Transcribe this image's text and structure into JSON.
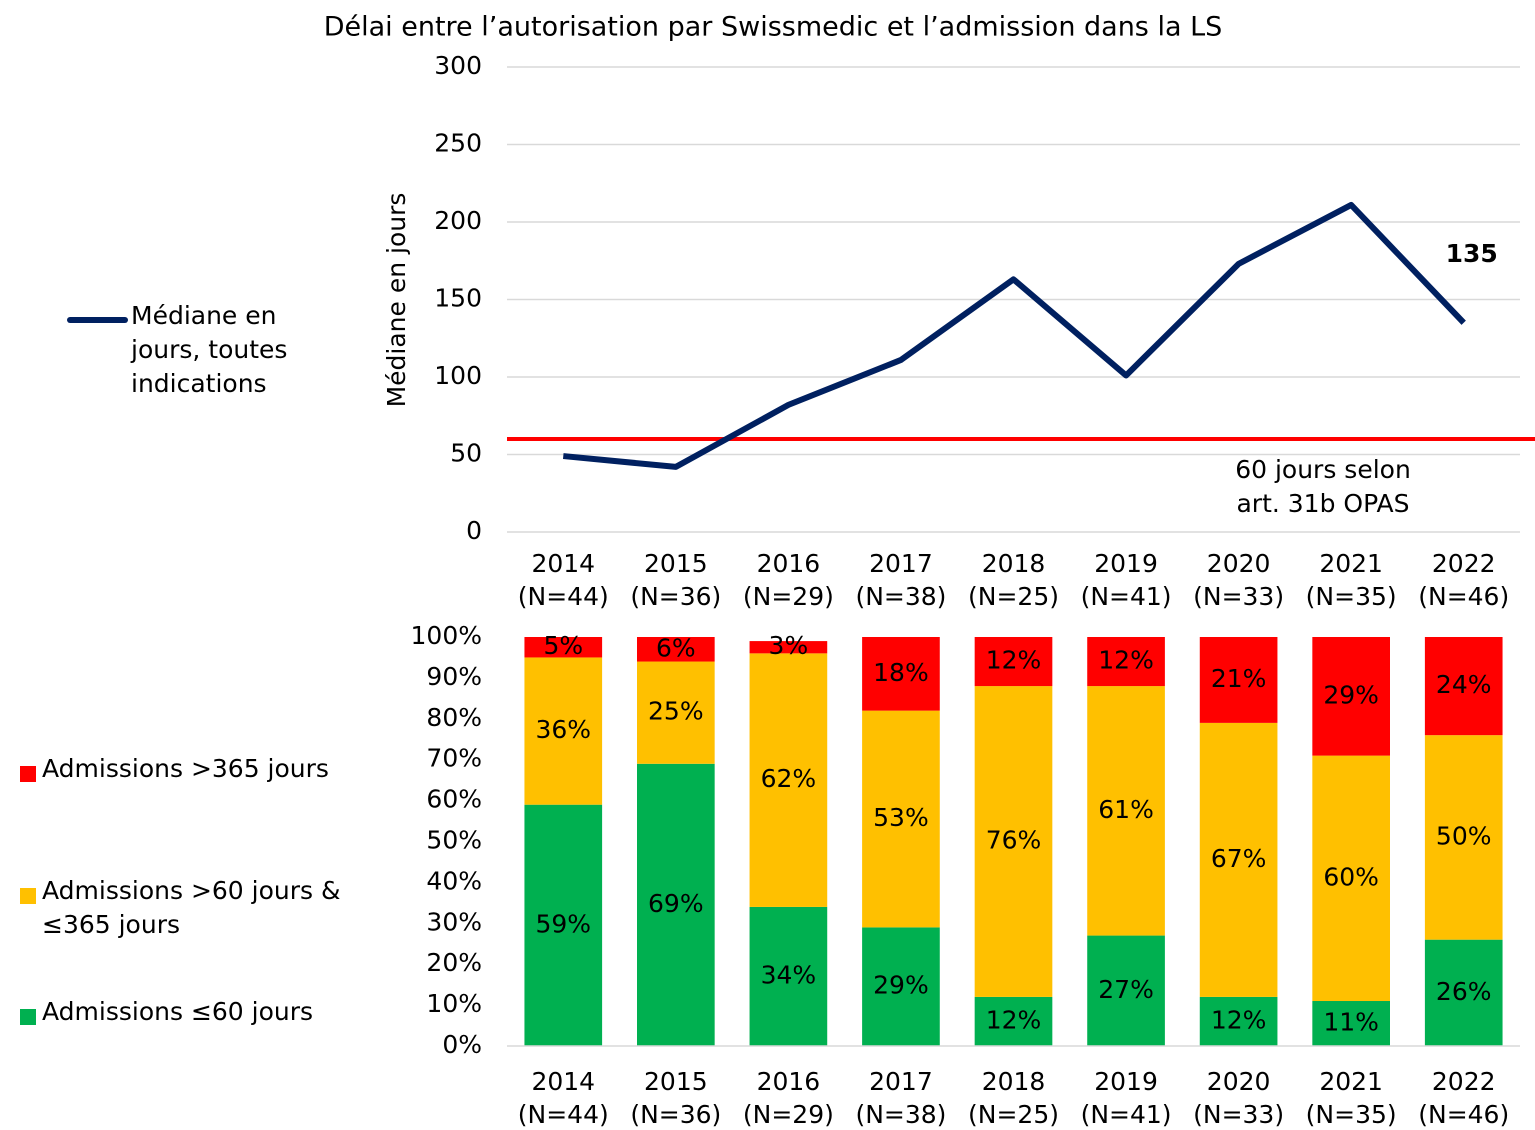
{
  "chart_data": [
    {
      "type": "line",
      "title": "Délai entre l’autorisation par Swissmedic et l’admission dans la LS",
      "y_label": "Médiane en jours",
      "categories": [
        [
          "2014",
          "(N=44)"
        ],
        [
          "2015",
          "(N=36)"
        ],
        [
          "2016",
          "(N=29)"
        ],
        [
          "2017",
          "(N=38)"
        ],
        [
          "2018",
          "(N=25)"
        ],
        [
          "2019",
          "(N=41)"
        ],
        [
          "2020",
          "(N=33)"
        ],
        [
          "2021",
          "(N=35)"
        ],
        [
          "2022",
          "(N=46)"
        ]
      ],
      "series": [
        {
          "name": "Médiane en jours, toutes indications",
          "color": "#002060",
          "values": [
            49,
            42,
            82,
            111,
            163,
            101,
            173,
            211,
            135
          ],
          "value_labels": [
            null,
            null,
            null,
            null,
            null,
            null,
            null,
            null,
            "135"
          ]
        }
      ],
      "ylim": [
        0,
        300
      ],
      "yticks": [
        0,
        50,
        100,
        150,
        200,
        250,
        300
      ],
      "grid": true,
      "reference_line": {
        "value": 60,
        "color": "#ff0000",
        "label": [
          "60 jours selon",
          "art. 31b OPAS"
        ]
      },
      "legend": "left"
    },
    {
      "type": "stacked_bar",
      "categories": [
        [
          "2014",
          "(N=44)"
        ],
        [
          "2015",
          "(N=36)"
        ],
        [
          "2016",
          "(N=29)"
        ],
        [
          "2017",
          "(N=38)"
        ],
        [
          "2018",
          "(N=25)"
        ],
        [
          "2019",
          "(N=41)"
        ],
        [
          "2020",
          "(N=33)"
        ],
        [
          "2021",
          "(N=35)"
        ],
        [
          "2022",
          "(N=46)"
        ]
      ],
      "series": [
        {
          "name": "Admissions ≤60 jours",
          "color": "#00b050",
          "values": [
            59,
            69,
            34,
            29,
            12,
            27,
            12,
            11,
            26
          ],
          "value_labels": [
            "59%",
            "69%",
            "34%",
            "29%",
            "12%",
            "27%",
            "12%",
            "11%",
            "26%"
          ]
        },
        {
          "name": "Admissions >60 jours & ≤365 jours",
          "color": "#ffc000",
          "values": [
            36,
            25,
            62,
            53,
            76,
            61,
            67,
            60,
            50
          ],
          "value_labels": [
            "36%",
            "25%",
            "62%",
            "53%",
            "76%",
            "61%",
            "67%",
            "60%",
            "50%"
          ]
        },
        {
          "name": "Admissions >365 jours",
          "color": "#ff0000",
          "values": [
            5,
            6,
            3,
            18,
            12,
            12,
            21,
            29,
            24
          ],
          "value_labels": [
            "5%",
            "6%",
            "3%",
            "18%",
            "12%",
            "12%",
            "21%",
            "29%",
            "24%"
          ]
        }
      ],
      "ylim": [
        0,
        100
      ],
      "yticks": [
        {
          "value": 0,
          "label": "0%"
        },
        {
          "value": 10,
          "label": "10%"
        },
        {
          "value": 20,
          "label": "20%"
        },
        {
          "value": 30,
          "label": "30%"
        },
        {
          "value": 40,
          "label": "40%"
        },
        {
          "value": 50,
          "label": "50%"
        },
        {
          "value": 60,
          "label": "60%"
        },
        {
          "value": 70,
          "label": "70%"
        },
        {
          "value": 80,
          "label": "80%"
        },
        {
          "value": 90,
          "label": "90%"
        },
        {
          "value": 100,
          "label": "100%"
        }
      ],
      "grid": false,
      "legend": "left"
    }
  ]
}
